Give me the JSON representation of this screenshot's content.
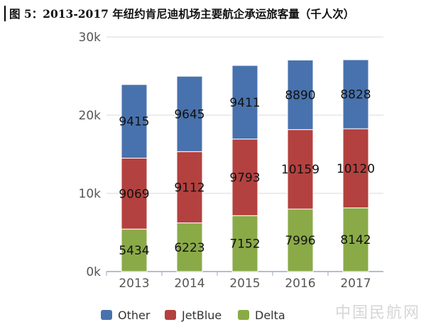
{
  "figure_title": "图 5：2013-2017 年纽约肯尼迪机场主要航企承运旅客量（千人次）",
  "watermark": "中国民航网",
  "chart_data": {
    "type": "bar",
    "stacked": true,
    "title": "图 5：2013-2017 年纽约肯尼迪机场主要航企承运旅客量（千人次）",
    "xlabel": "",
    "ylabel": "",
    "categories": [
      "2013",
      "2014",
      "2015",
      "2016",
      "2017"
    ],
    "ylim": [
      0,
      30000
    ],
    "yticks": [
      0,
      10000,
      20000,
      30000
    ],
    "ytick_labels": [
      "0k",
      "10k",
      "20k",
      "30k"
    ],
    "grid": true,
    "legend_position": "bottom",
    "series": [
      {
        "name": "Delta",
        "color": "#8aaa48",
        "values": [
          5434,
          6223,
          7152,
          7996,
          8142
        ]
      },
      {
        "name": "JetBlue",
        "color": "#b3413f",
        "values": [
          9069,
          9112,
          9793,
          10159,
          10120
        ]
      },
      {
        "name": "Other",
        "color": "#4872ad",
        "values": [
          9415,
          9645,
          9411,
          8890,
          8828
        ]
      }
    ],
    "legend_order": [
      "Other",
      "JetBlue",
      "Delta"
    ]
  }
}
